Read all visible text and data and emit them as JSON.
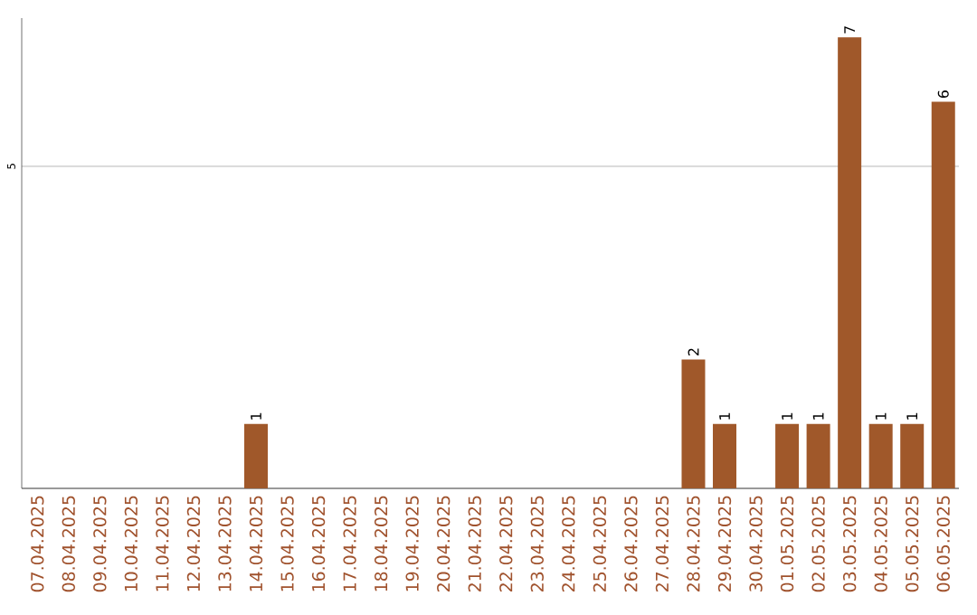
{
  "chart_data": {
    "type": "bar",
    "categories": [
      "07.04.2025",
      "08.04.2025",
      "09.04.2025",
      "10.04.2025",
      "11.04.2025",
      "12.04.2025",
      "13.04.2025",
      "14.04.2025",
      "15.04.2025",
      "16.04.2025",
      "17.04.2025",
      "18.04.2025",
      "19.04.2025",
      "20.04.2025",
      "21.04.2025",
      "22.04.2025",
      "23.04.2025",
      "24.04.2025",
      "25.04.2025",
      "26.04.2025",
      "27.04.2025",
      "28.04.2025",
      "29.04.2025",
      "30.04.2025",
      "01.05.2025",
      "02.05.2025",
      "03.05.2025",
      "04.05.2025",
      "05.05.2025",
      "06.05.2025"
    ],
    "values": [
      0,
      0,
      0,
      0,
      0,
      0,
      0,
      1,
      0,
      0,
      0,
      0,
      0,
      0,
      0,
      0,
      0,
      0,
      0,
      0,
      0,
      2,
      1,
      0,
      1,
      1,
      7,
      1,
      1,
      6
    ],
    "value_labels": [
      null,
      null,
      null,
      null,
      null,
      null,
      null,
      "1",
      null,
      null,
      null,
      null,
      null,
      null,
      null,
      null,
      null,
      null,
      null,
      null,
      null,
      "2",
      "1",
      null,
      "1",
      "1",
      "7",
      "1",
      "1",
      "6"
    ],
    "color": "#a0582a",
    "ylim": [
      0,
      7.3
    ],
    "yticks": [
      5
    ],
    "grid": "y"
  }
}
